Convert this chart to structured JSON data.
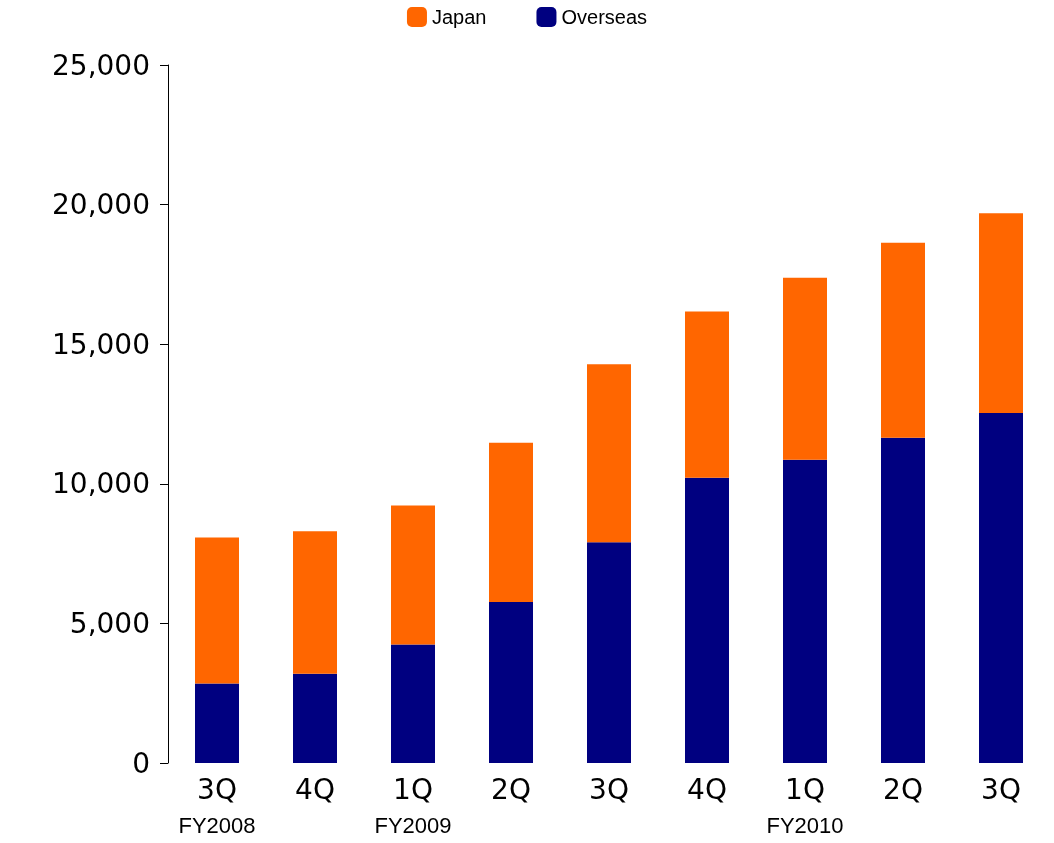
{
  "chart_data": {
    "type": "bar",
    "stacked": true,
    "categories": [
      "3Q\nFY2008",
      "4Q",
      "1Q\nFY2009",
      "2Q",
      "3Q",
      "4Q",
      "1Q\nFY2010",
      "2Q",
      "3Q"
    ],
    "series": [
      {
        "name": "Overseas",
        "color": "#000080",
        "values": [
          2850,
          3200,
          4240,
          5770,
          7910,
          10220,
          10860,
          11650,
          12540
        ]
      },
      {
        "name": "Japan",
        "color": "#ff6600",
        "values": [
          5230,
          5100,
          4980,
          5700,
          6370,
          5950,
          6520,
          6980,
          7150
        ]
      }
    ],
    "ylim": [
      0,
      25000
    ],
    "yticks": [
      0,
      {
        "value": 5000,
        "label": "5,000"
      },
      {
        "value": 10000,
        "label": "10,000"
      },
      {
        "value": 15000,
        "label": "15,000"
      },
      {
        "value": 20000,
        "label": "20,000"
      },
      {
        "value": 25000,
        "label": "25,000"
      }
    ],
    "grid": false,
    "legend": "top"
  }
}
